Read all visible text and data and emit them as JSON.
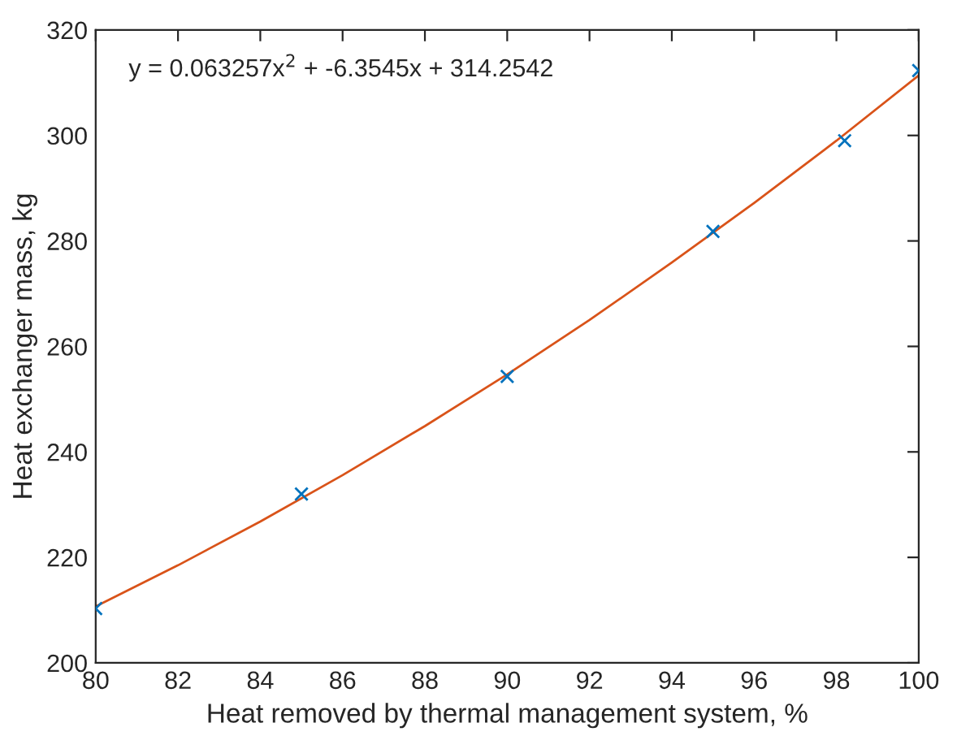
{
  "chart_data": {
    "type": "scatter",
    "xlabel": "Heat removed by thermal management system, %",
    "ylabel": "Heat exchanger mass, kg",
    "xlim": [
      80,
      100
    ],
    "xticks": [
      80,
      82,
      84,
      86,
      88,
      90,
      92,
      94,
      96,
      98,
      100
    ],
    "ylim": [
      200,
      320
    ],
    "yticks": [
      200,
      220,
      240,
      260,
      280,
      300,
      320
    ],
    "grid": false,
    "legend": false,
    "annotations": [
      "y = 0.063257x$^{2}$ + -6.3545x + 314.2542"
    ],
    "series": [
      {
        "marker": "cross",
        "color": "#0072bd",
        "x": [
          80,
          85,
          90,
          95,
          98.2,
          100
        ],
        "values": [
          210.3,
          232.0,
          254.3,
          281.8,
          299.0,
          312.3
        ]
      },
      {
        "type": "line",
        "marker": "none",
        "line_style": "solid",
        "color": "#d95319",
        "x": [
          80,
          82,
          84,
          86,
          88,
          90,
          92,
          94,
          96,
          98,
          100
        ],
        "values": [
          210.7,
          218.5,
          226.8,
          235.6,
          244.9,
          254.7,
          265.0,
          275.9,
          287.2,
          299.0,
          311.4
        ]
      }
    ]
  }
}
